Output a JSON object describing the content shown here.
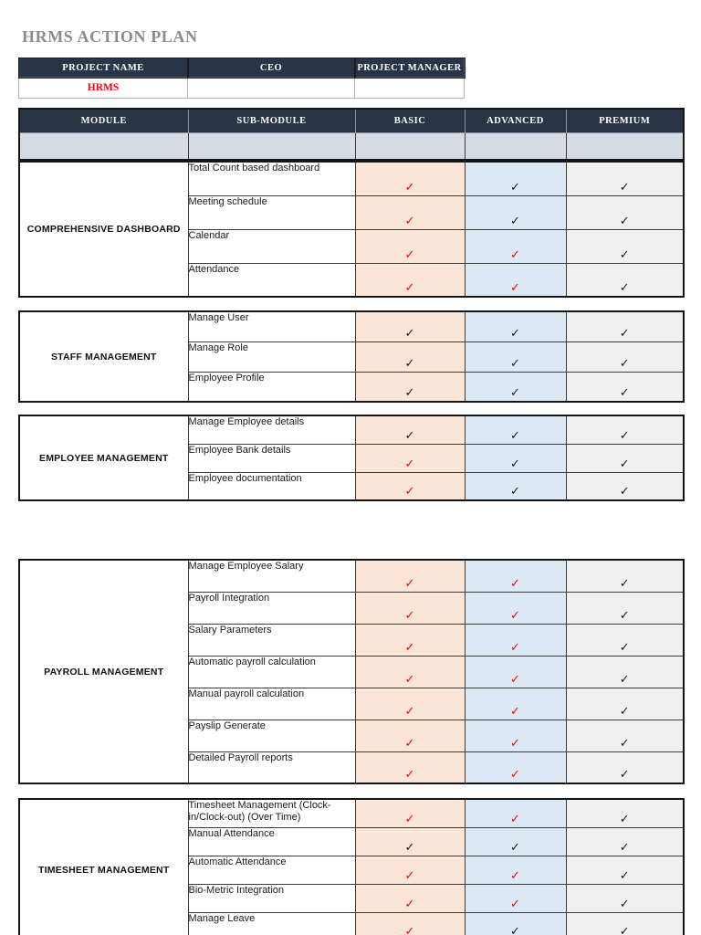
{
  "page": {
    "title": "HRMS ACTION PLAN"
  },
  "project_table": {
    "headers": [
      "PROJECT NAME",
      "CEO",
      "PROJECT MANAGER"
    ],
    "values": [
      "HRMS",
      "",
      ""
    ]
  },
  "plan_table": {
    "headers": [
      "MODULE",
      "SUB-MODULE",
      "BASIC",
      "ADVANCED",
      "PREMIUM"
    ],
    "sections": [
      {
        "module": "COMPREHENSIVE DASHBOARD",
        "rows": [
          {
            "sub_module": "Total Count based dashboard",
            "basic": "red",
            "advanced": "black",
            "premium": "black"
          },
          {
            "sub_module": "Meeting schedule",
            "basic": "red",
            "advanced": "black",
            "premium": "black"
          },
          {
            "sub_module": "Calendar",
            "basic": "red",
            "advanced": "red",
            "premium": "black"
          },
          {
            "sub_module": "Attendance",
            "basic": "red",
            "advanced": "red",
            "premium": "black"
          }
        ]
      },
      {
        "module": "STAFF MANAGEMENT",
        "rows": [
          {
            "sub_module": "Manage User",
            "basic": "black",
            "advanced": "black",
            "premium": "black"
          },
          {
            "sub_module": "Manage Role",
            "basic": "black",
            "advanced": "black",
            "premium": "black"
          },
          {
            "sub_module": "Employee Profile",
            "basic": "black",
            "advanced": "black",
            "premium": "black"
          }
        ]
      },
      {
        "module": "EMPLOYEE MANAGEMENT",
        "rows": [
          {
            "sub_module": "Manage Employee details",
            "basic": "black",
            "advanced": "black",
            "premium": "black"
          },
          {
            "sub_module": "Employee Bank details",
            "basic": "red",
            "advanced": "black",
            "premium": "black"
          },
          {
            "sub_module": "Employee documentation",
            "basic": "red",
            "advanced": "black",
            "premium": "black"
          }
        ]
      },
      {
        "module": "PAYROLL MANAGEMENT",
        "rows": [
          {
            "sub_module": "Manage Employee Salary",
            "basic": "red",
            "advanced": "red",
            "premium": "black"
          },
          {
            "sub_module": "Payroll Integration",
            "basic": "red",
            "advanced": "red",
            "premium": "black"
          },
          {
            "sub_module": "Salary Parameters",
            "basic": "red",
            "advanced": "red",
            "premium": "black"
          },
          {
            "sub_module": "Automatic payroll calculation",
            "basic": "red",
            "advanced": "red",
            "premium": "black"
          },
          {
            "sub_module": "Manual payroll calculation",
            "basic": "red",
            "advanced": "red",
            "premium": "black"
          },
          {
            "sub_module": "Payslip Generate",
            "basic": "red",
            "advanced": "red",
            "premium": "black"
          },
          {
            "sub_module": "Detailed Payroll reports",
            "basic": "red",
            "advanced": "red",
            "premium": "black"
          }
        ]
      },
      {
        "module": "TIMESHEET MANAGEMENT",
        "rows": [
          {
            "sub_module": "Timesheet Management (Clock-in/Clock-out) (Over Time)",
            "basic": "red",
            "advanced": "red",
            "premium": "black"
          },
          {
            "sub_module": "Manual Attendance",
            "basic": "black",
            "advanced": "black",
            "premium": "black"
          },
          {
            "sub_module": "Automatic  Attendance",
            "basic": "red",
            "advanced": "red",
            "premium": "black"
          },
          {
            "sub_module": "Bio-Metric Integration",
            "basic": "red",
            "advanced": "red",
            "premium": "black"
          },
          {
            "sub_module": "Manage Leave",
            "basic": "red",
            "advanced": "black",
            "premium": "black"
          }
        ]
      }
    ]
  },
  "icons": {
    "check": "✓"
  },
  "colors": {
    "navy": "#2a3447",
    "spacer_bg": "#d6dce4",
    "basic_bg": "#fbe5d6",
    "advanced_bg": "#dce8f4",
    "premium_bg": "#f0f0f0",
    "check_red": "#ff0000",
    "check_black": "#1a1a1a",
    "title_gray": "#8c8c8c"
  }
}
